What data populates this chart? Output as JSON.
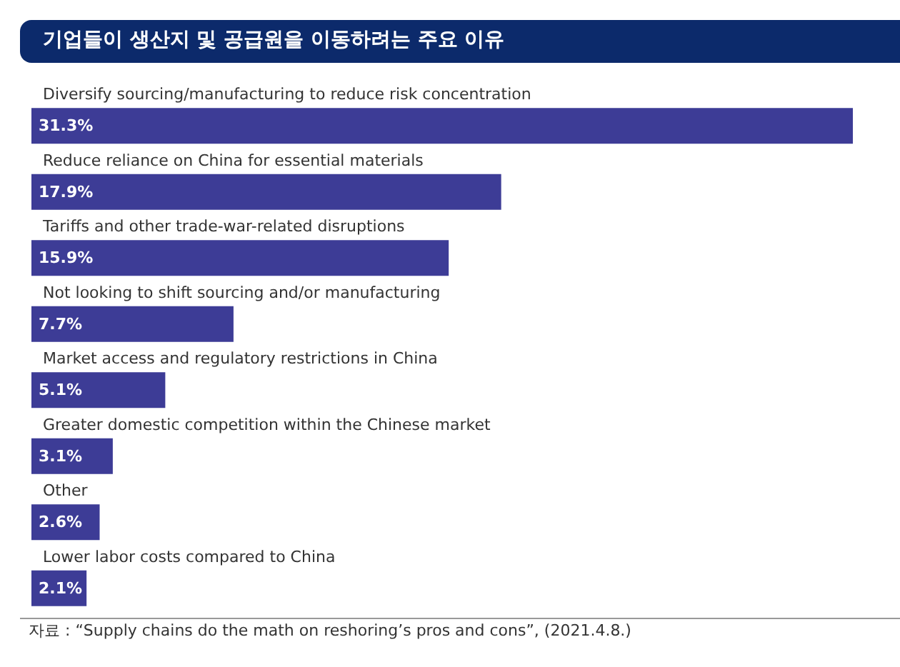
{
  "chart_data": {
    "type": "bar",
    "orientation": "horizontal",
    "title": "기업들이 생산지 및 공급원을 이동하려는 주요 이유",
    "categories": [
      "Diversify sourcing/manufacturing to reduce risk concentration",
      "Reduce reliance on China for essential materials",
      "Tariffs and other trade-war-related disruptions",
      "Not looking to shift sourcing and/or manufacturing",
      "Market access and regulatory restrictions in China",
      "Greater domestic competition within the Chinese market",
      "Other",
      "Lower labor costs compared to China"
    ],
    "values": [
      31.3,
      17.9,
      15.9,
      7.7,
      5.1,
      3.1,
      2.6,
      2.1
    ],
    "value_labels": [
      "31.3%",
      "17.9%",
      "15.9%",
      "7.7%",
      "5.1%",
      "3.1%",
      "2.6%",
      "2.1%"
    ],
    "color": "#3d3c96",
    "tick_labels": "y",
    "annotations": [
      "자료 : “Supply chains do the math on reshoring’s pros and cons”, (2021.4.8.)"
    ]
  }
}
